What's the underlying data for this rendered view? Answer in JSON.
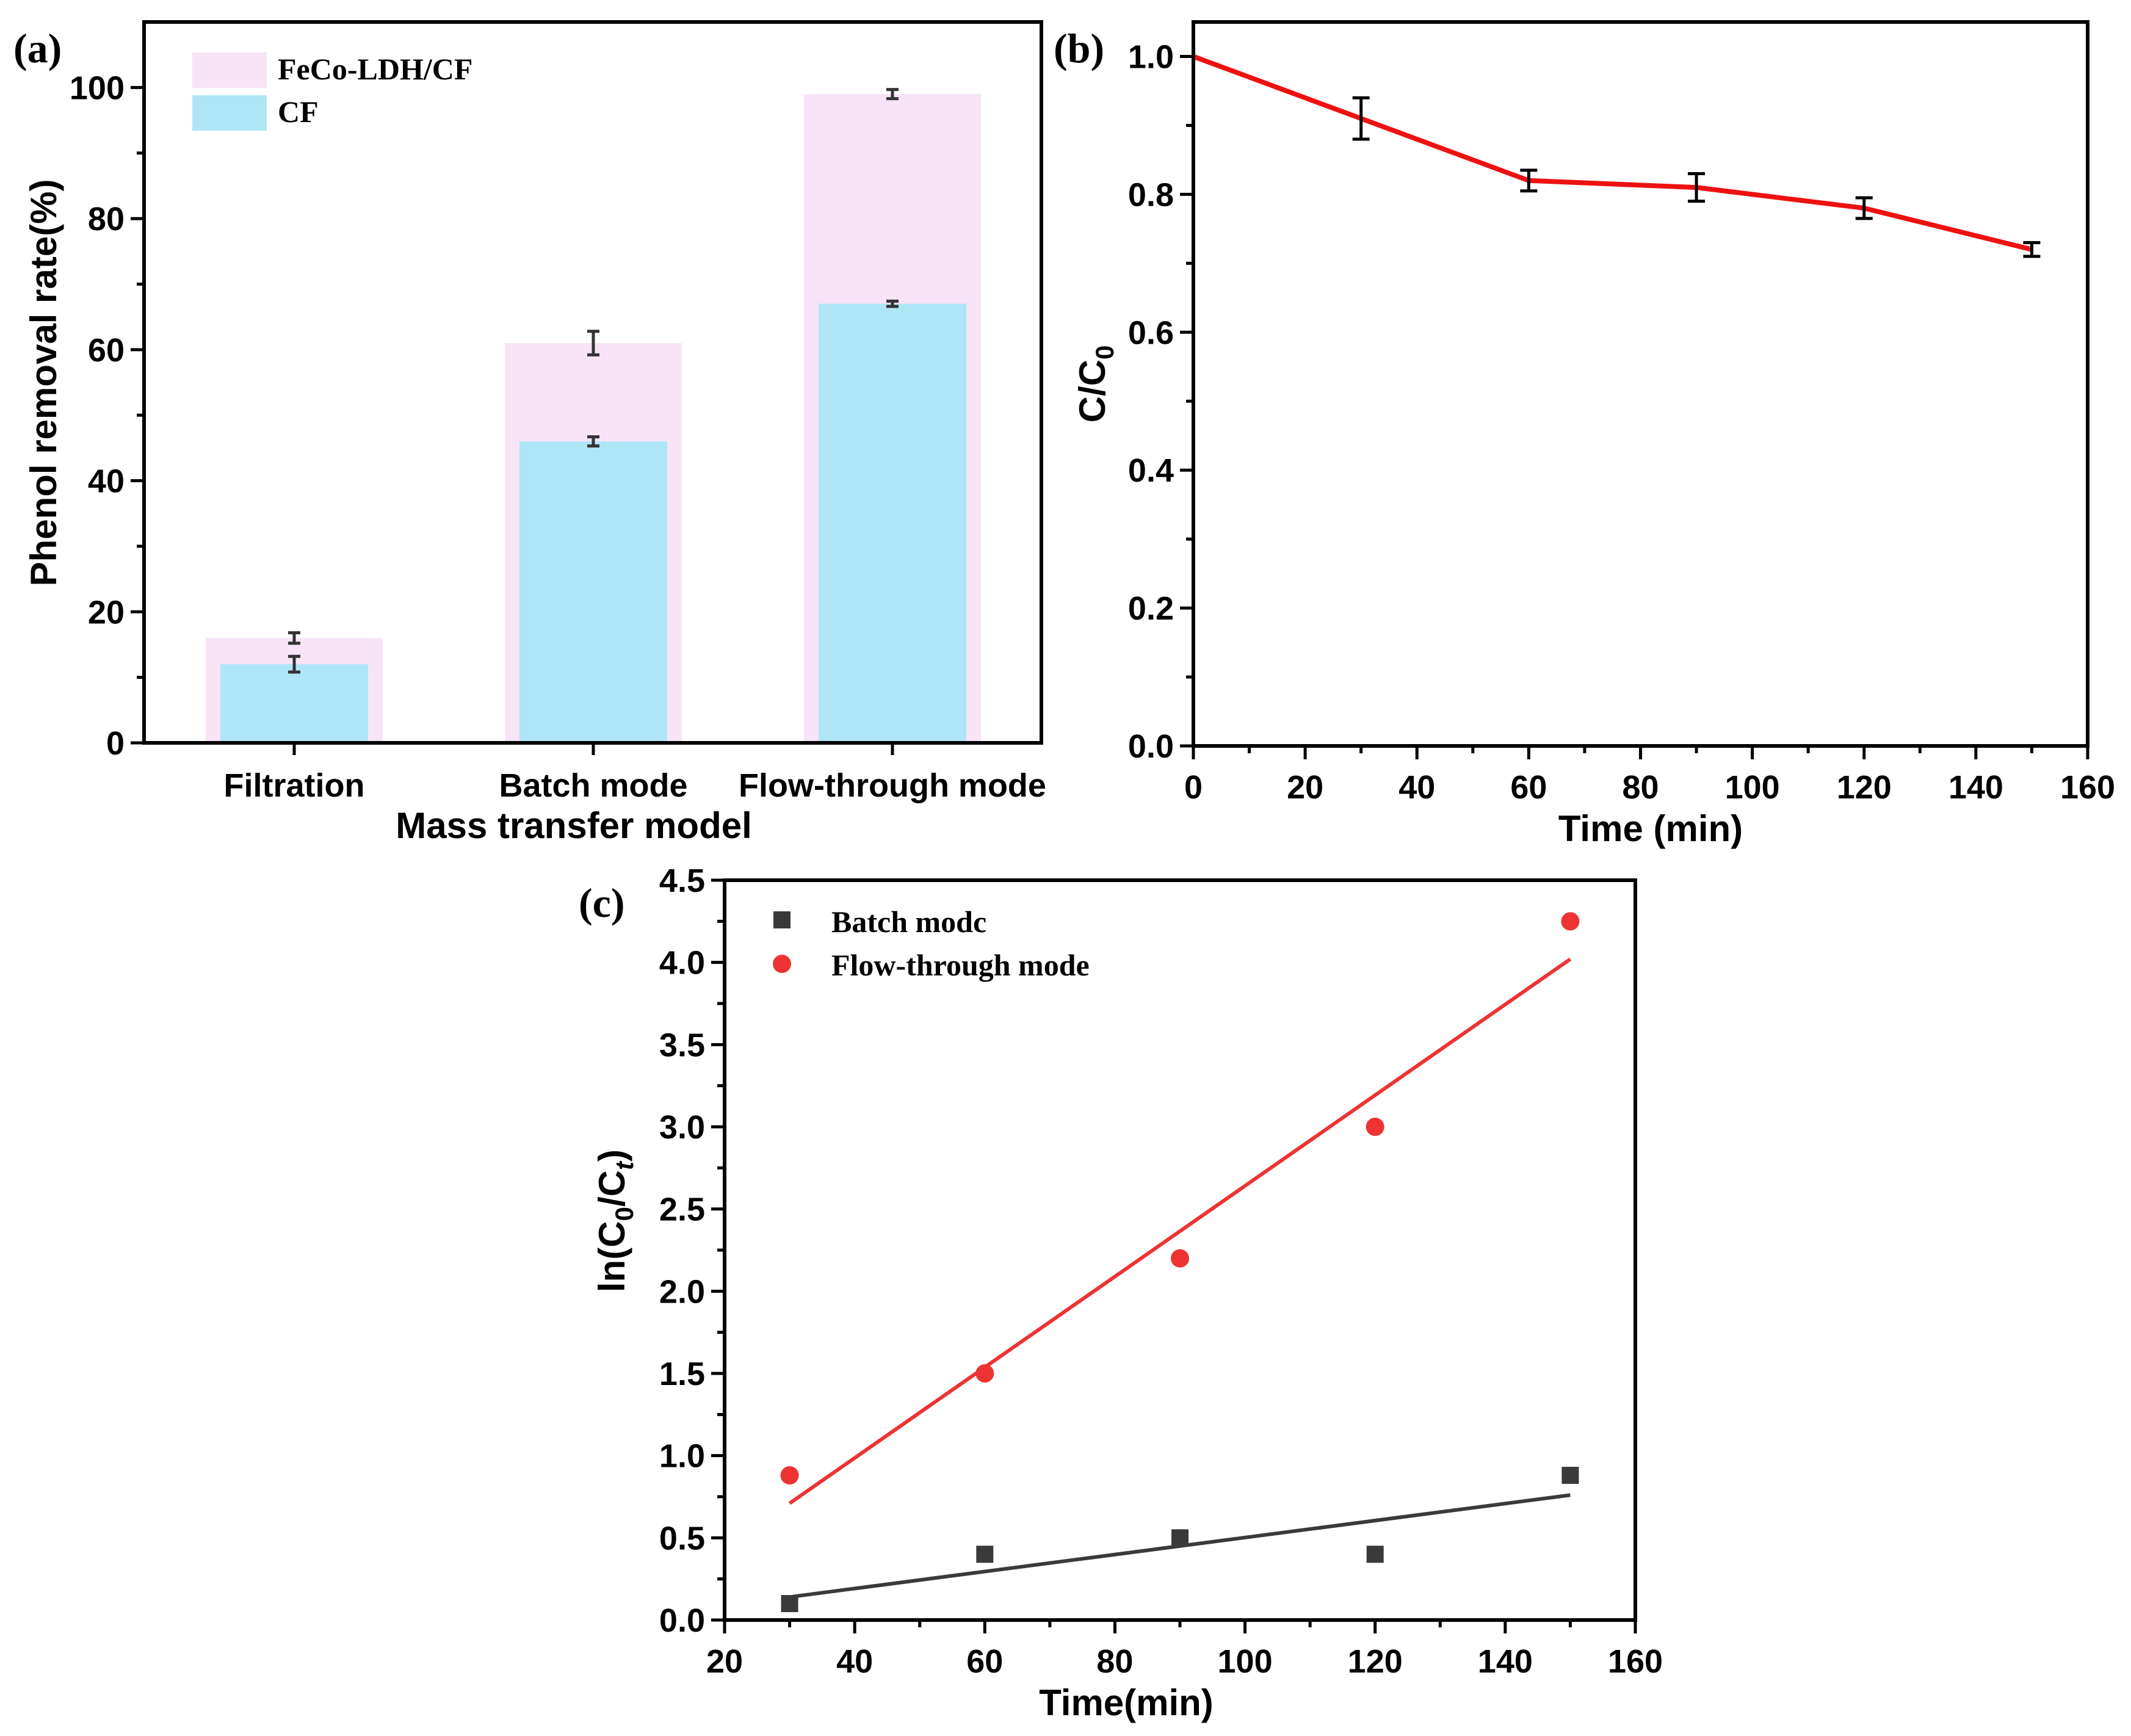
{
  "chart_data": [
    {
      "panel": "(a)",
      "type": "bar",
      "xlabel": "Mass transfer model",
      "ylabel": "Phenol removal rate(%)",
      "ylim": [
        0,
        110
      ],
      "yticks": [
        "0",
        "20",
        "40",
        "60",
        "80",
        "100"
      ],
      "categories": [
        "Filtration",
        "Batch mode",
        "Flow-through mode"
      ],
      "legend_position": "top-left",
      "series": [
        {
          "name": "FeCo-LDH/CF",
          "color": "#f7e4f7",
          "values": [
            16,
            61,
            99
          ],
          "errors": [
            0.8,
            1.8,
            0.7
          ]
        },
        {
          "name": "CF",
          "color": "#aee6f6",
          "values": [
            12,
            46,
            67
          ],
          "errors": [
            1.2,
            0.7,
            0.4
          ]
        }
      ]
    },
    {
      "panel": "(b)",
      "type": "line",
      "xlabel": "Time (min)",
      "ylabel_main": "C/C",
      "ylabel_sub": "0",
      "xlim": [
        0,
        160
      ],
      "ylim": [
        0,
        1.05
      ],
      "xticks": [
        "0",
        "20",
        "40",
        "60",
        "80",
        "100",
        "120",
        "140",
        "160"
      ],
      "yticks": [
        "0.0",
        "0.2",
        "0.4",
        "0.6",
        "0.8",
        "1.0"
      ],
      "series": [
        {
          "name": "C/C0",
          "color": "#ee1111",
          "x": [
            0,
            30,
            60,
            90,
            120,
            150
          ],
          "y": [
            1.0,
            0.91,
            0.82,
            0.81,
            0.78,
            0.72
          ],
          "errors": [
            0,
            0.03,
            0.015,
            0.02,
            0.015,
            0.01
          ]
        }
      ]
    },
    {
      "panel": "(c)",
      "type": "scatter",
      "xlabel": "Time(min)",
      "ylabel_parts": [
        "ln(C",
        "0",
        "/C",
        "t",
        ")"
      ],
      "xlim": [
        20,
        160
      ],
      "ylim": [
        0,
        4.5
      ],
      "xticks": [
        "20",
        "40",
        "60",
        "80",
        "100",
        "120",
        "140",
        "160"
      ],
      "yticks": [
        "0.0",
        "0.5",
        "1.0",
        "1.5",
        "2.0",
        "2.5",
        "3.0",
        "3.5",
        "4.0",
        "4.5"
      ],
      "legend_position": "top-left",
      "series": [
        {
          "name": "Batch modc",
          "marker": "square",
          "color": "#3a3a3a",
          "x": [
            30,
            60,
            90,
            120,
            150
          ],
          "y": [
            0.1,
            0.4,
            0.5,
            0.4,
            0.88
          ],
          "fit": {
            "x": [
              30,
              150
            ],
            "y": [
              0.14,
              0.76
            ]
          }
        },
        {
          "name": "Flow-through mode",
          "marker": "circle",
          "color": "#ee3333",
          "x": [
            30,
            60,
            90,
            120,
            150
          ],
          "y": [
            0.88,
            1.5,
            2.2,
            3.0,
            4.25
          ],
          "fit": {
            "x": [
              30,
              150
            ],
            "y": [
              0.71,
              4.02
            ]
          }
        }
      ]
    }
  ]
}
